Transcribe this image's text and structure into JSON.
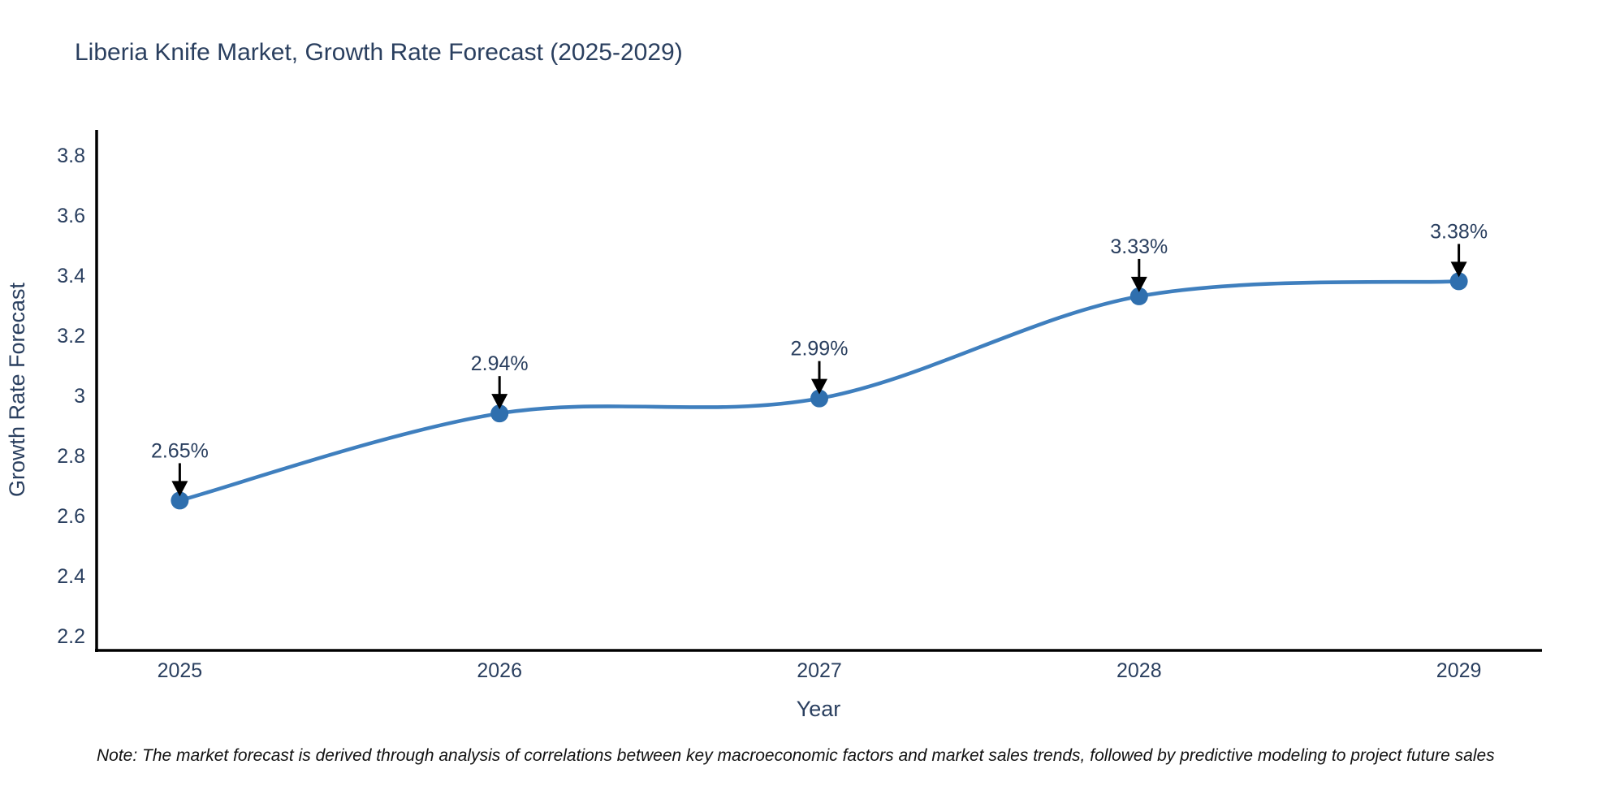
{
  "title": {
    "text": "Liberia Knife Market, Growth Rate Forecast (2025-2029)"
  },
  "note": {
    "text": "Note: The market forecast is derived through analysis of correlations between key macroeconomic factors and market sales trends, followed by predictive modeling to project future sales"
  },
  "chart_data": {
    "type": "line",
    "title": "Liberia Knife Market, Growth Rate Forecast (2025-2029)",
    "x": [
      2025,
      2026,
      2027,
      2028,
      2029
    ],
    "values": [
      2.65,
      2.94,
      2.99,
      3.33,
      3.38
    ],
    "point_labels": [
      "2.65%",
      "2.94%",
      "2.99%",
      "3.33%",
      "3.38%"
    ],
    "xlabel": "Year",
    "ylabel": "Growth Rate Forecast",
    "x_ticks": [
      "2025",
      "2026",
      "2027",
      "2028",
      "2029"
    ],
    "y_ticks": [
      "2.2",
      "2.4",
      "2.6",
      "2.8",
      "3",
      "3.2",
      "3.4",
      "3.6",
      "3.8"
    ],
    "xlim": [
      2024.74,
      2029.26
    ],
    "ylim": [
      2.151,
      3.884
    ],
    "grid": false,
    "legend": "none",
    "line_shape": "spline",
    "colors": {
      "line": "#3f7fbe",
      "marker": "#2f6fae",
      "axis": "#000000",
      "tick_text": "#2a3f5f",
      "annotation_arrow": "#000000",
      "note_text": "#111111",
      "background": "#ffffff"
    }
  }
}
